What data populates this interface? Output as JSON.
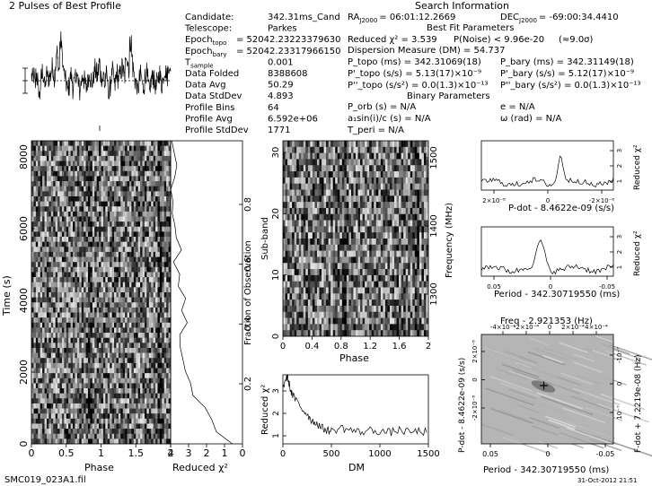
{
  "app": {
    "title": "2 Pulses of Best Profile",
    "footer_left": "SMC019_023A1.fil",
    "footer_right": "31-Oct-2012 21:51"
  },
  "candidate": {
    "rows": [
      {
        "k": "Candidate:",
        "v": "342.31ms_Cand"
      },
      {
        "k": "Telescope:",
        "v": "Parkes"
      },
      {
        "k": "Epoch",
        "sub": "topo",
        "v": "= 52042.23223379630"
      },
      {
        "k": "Epoch",
        "sub": "bary",
        "v": "= 52042.23317966150"
      },
      {
        "k": "T",
        "sub": "sample",
        "v": "0.001"
      },
      {
        "k": "Data Folded",
        "v": "8388608"
      },
      {
        "k": "Data Avg",
        "v": "50.29"
      },
      {
        "k": "Data StdDev",
        "v": "4.893"
      },
      {
        "k": "Profile Bins",
        "v": "64"
      },
      {
        "k": "Profile Avg",
        "v": "6.592e+06"
      },
      {
        "k": "Profile StdDev",
        "v": "1771"
      }
    ]
  },
  "search": {
    "heading": "Search Information",
    "ra": "RA",
    "ra_sub": "J2000",
    "ra_val": "= 06:01:12.2669",
    "dec": "DEC",
    "dec_sub": "J2000",
    "dec_val": "= -69:00:34.4410",
    "best_fit_heading": "Best Fit Parameters",
    "reduced_chi": "Reduced χ² = 3.539",
    "pnoise": "P(Noise) < 9.96e-20",
    "sigma": "(≈9.0σ)",
    "dm_line": "Dispersion Measure (DM) = 54.737",
    "ptopo": "P_topo (ms) = 342.31069(18)",
    "pdtopo": "P'_topo (s/s) = 5.13(17)×10⁻⁹",
    "pddtopo": "P''_topo (s/s²) = 0.0(1.3)×10⁻¹³",
    "pbary": "P_bary (ms) = 342.31149(18)",
    "pdbary": "P'_bary (s/s) = 5.12(17)×10⁻⁹",
    "pddbary": "P''_bary (s/s²) = 0.0(1.3)×10⁻¹³",
    "binary_heading": "Binary Parameters",
    "porb": "P_orb (s) = N/A",
    "a1": "a₁sin(i)/c (s) = N/A",
    "tperi": "T_peri = N/A",
    "e": "e = N/A",
    "omega": "ω (rad) = N/A"
  },
  "chart_data": [
    {
      "type": "line",
      "name": "profile",
      "title": "2 Pulses of Best Profile",
      "x": "phase 0-2",
      "values": [
        0.2,
        0.1,
        0.25,
        -0.2,
        0.3,
        0.1,
        -0.4,
        -0.8,
        -0.3,
        0.2,
        0.5,
        0.1,
        -0.3,
        0.0,
        0.4,
        0.1,
        0.2,
        0.3,
        0.5,
        0.7,
        0.4,
        0.2,
        0.8,
        1.4,
        1.0,
        0.6,
        1.8,
        2.0,
        1.2,
        0.6,
        0.3,
        0.0,
        -0.2,
        -0.5,
        -0.3,
        0.1,
        0.3,
        0.0,
        -0.4,
        -0.2,
        0.2,
        0.4,
        0.1,
        -0.3,
        -0.6,
        -0.2,
        0.1,
        0.3,
        0.0,
        -0.2,
        -0.4,
        -0.1,
        0.2,
        0.4,
        0.1,
        -0.2,
        0.0,
        0.3,
        0.6,
        0.4,
        0.2,
        0.5,
        0.9,
        0.3
      ]
    },
    {
      "type": "heatmap",
      "name": "time-phase",
      "xlabel": "Phase",
      "ylabel": "Time (s)",
      "xticks": [
        "0",
        "0.5",
        "1",
        "1.5",
        "2"
      ],
      "yticks": [
        "0",
        "2000",
        "4000",
        "6000",
        "8000"
      ],
      "yticks2": [
        "0.2",
        "0.4",
        "0.6",
        "0.8"
      ],
      "ylabel2": "Fraction of Observation",
      "ylim": [
        0,
        8400
      ]
    },
    {
      "type": "line",
      "name": "reduced-chi-vs-time",
      "xlabel": "Reduced χ²",
      "xticks": [
        "4",
        "3",
        "2",
        "1",
        "0"
      ],
      "x": [
        0.0,
        0.04,
        0.08,
        0.12,
        0.16,
        0.2,
        0.24,
        0.28,
        0.32,
        0.36,
        0.4,
        0.44,
        0.48,
        0.52,
        0.56,
        0.6,
        0.64,
        0.68,
        0.72,
        0.76,
        0.8,
        0.84,
        0.88,
        0.92,
        0.96,
        1.0
      ],
      "values": [
        0.6,
        1.5,
        1.7,
        2.1,
        2.8,
        2.9,
        3.2,
        3.3,
        3.5,
        3.5,
        3.1,
        3.4,
        3.2,
        3.6,
        3.5,
        3.8,
        3.4,
        3.7,
        3.8,
        3.9,
        3.9,
        3.95,
        3.8,
        3.7,
        3.85,
        3.9
      ]
    },
    {
      "type": "heatmap",
      "name": "subband-phase",
      "xlabel": "Phase",
      "ylabel": "Sub-band",
      "ylabel2": "Frequency (MHz)",
      "xticks": [
        "0",
        "0.4",
        "0.8",
        "1.2",
        "1.6",
        "2"
      ],
      "yticks": [
        "0",
        "10",
        "20",
        "30"
      ],
      "yticks2": [
        "1300",
        "1400",
        "1500"
      ]
    },
    {
      "type": "line",
      "name": "chi-vs-dm",
      "xlabel": "DM",
      "ylabel": "Reduced χ²",
      "xticks": [
        "0",
        "500",
        "1000",
        "1500"
      ],
      "yticks": [
        "1",
        "2",
        "3"
      ],
      "xlim": [
        0,
        1500
      ],
      "ylim": [
        0.5,
        3.5
      ],
      "x": [
        0,
        25,
        50,
        75,
        100,
        150,
        200,
        250,
        300,
        350,
        400,
        450,
        500,
        600,
        700,
        800,
        900,
        1000,
        1100,
        1200,
        1300,
        1400,
        1500
      ],
      "values": [
        2.9,
        3.3,
        3.4,
        2.9,
        2.6,
        2.3,
        2.0,
        1.8,
        1.5,
        1.4,
        1.2,
        1.1,
        1.05,
        1.2,
        1.1,
        1.0,
        1.1,
        1.05,
        1.0,
        1.1,
        1.0,
        1.05,
        1.0
      ]
    },
    {
      "type": "line",
      "name": "chi-vs-pdot",
      "xlabel": "P-dot - 8.4622e-09 (s/s)",
      "ylabel": "Reduced χ²",
      "xticks": [
        "2×10⁻⁸",
        "0",
        "-2×10⁻⁸"
      ],
      "yticks": [
        "1",
        "2",
        "3"
      ]
    },
    {
      "type": "line",
      "name": "chi-vs-period",
      "xlabel": "Period - 342.30719550 (ms)",
      "ylabel": "Reduced χ²",
      "xticks": [
        "0.05",
        "0",
        "-0.05"
      ],
      "yticks": [
        "1",
        "2",
        "3"
      ]
    },
    {
      "type": "heatmap",
      "name": "period-pdot",
      "title": "Freq - 2.921353 (Hz)",
      "xlabel": "Period - 342.30719550 (ms)",
      "ylabel": "P-dot - 8.4622e-09 (s/s)",
      "ylabel2": "F-dot + 7.2219e-08 (Hz)",
      "xticks": [
        "0.05",
        "0",
        "-0.05"
      ],
      "xticks_top": [
        "-4×10⁻⁴",
        "-2×10⁻⁴",
        "0",
        "2×10⁻⁴",
        "4×10⁻⁴"
      ],
      "yticks": [
        "-2×10⁻⁸",
        "0",
        "2×10⁻⁸"
      ],
      "yticks2": [
        "10⁻⁷",
        "0",
        "-10⁻⁷"
      ]
    }
  ]
}
